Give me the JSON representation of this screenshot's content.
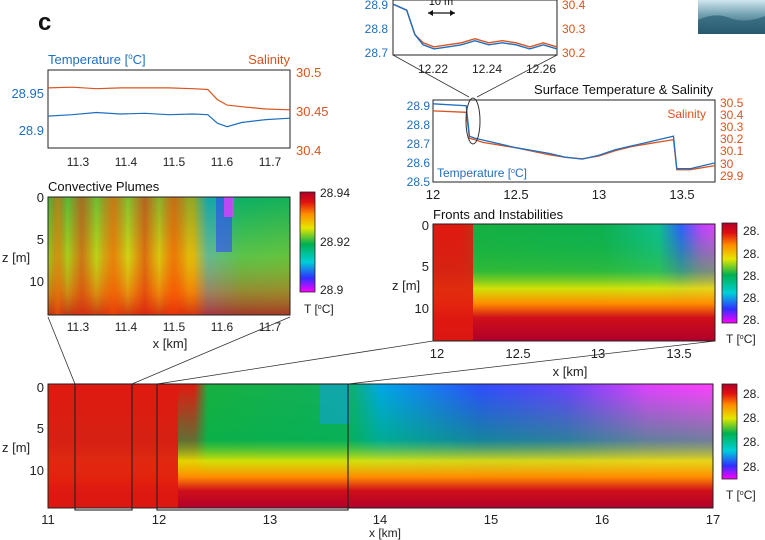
{
  "panel_letter": "c",
  "colors": {
    "temperature": "#1f6fc0",
    "salinity": "#d9541f",
    "axis": "#222222",
    "zoom_lines": "#333333"
  },
  "colormap": [
    "#ff00ff",
    "#2f30ff",
    "#00d0d8",
    "#00b050",
    "#e6e600",
    "#ff8c00",
    "#e01010",
    "#b0002a"
  ],
  "chart_data": [
    {
      "id": "zoom-surface",
      "type": "line",
      "x_ticks": [
        "12.22",
        "12.24",
        "12.26"
      ],
      "xlim": [
        12.205,
        12.265
      ],
      "y_left_ticks": [
        "28.9",
        "28.8",
        "28.7"
      ],
      "ylim_left": [
        28.68,
        28.95
      ],
      "y_right_ticks": [
        "30.4",
        "30.3",
        "30.2"
      ],
      "ylim_right": [
        30.18,
        30.45
      ],
      "scale_bar_label": "10 m",
      "series": [
        {
          "name": "Temperature",
          "x": [
            12.205,
            12.21,
            12.213,
            12.216,
            12.22,
            12.225,
            12.23,
            12.235,
            12.24,
            12.245,
            12.25,
            12.255,
            12.26,
            12.265
          ],
          "y": [
            28.93,
            28.9,
            28.78,
            28.73,
            28.71,
            28.72,
            28.73,
            28.75,
            28.73,
            28.74,
            28.73,
            28.71,
            28.73,
            28.71
          ]
        },
        {
          "name": "Salinity",
          "x": [
            12.205,
            12.21,
            12.213,
            12.216,
            12.22,
            12.225,
            12.23,
            12.235,
            12.24,
            12.245,
            12.25,
            12.255,
            12.26,
            12.265
          ],
          "y": [
            30.43,
            30.4,
            30.28,
            30.24,
            30.22,
            30.23,
            30.24,
            30.26,
            30.24,
            30.25,
            30.24,
            30.22,
            30.24,
            30.22
          ]
        }
      ]
    },
    {
      "id": "convective-surface",
      "type": "line",
      "legend_left": "Temperature [",
      "legend_left_unit": "o",
      "legend_left_end": "C]",
      "legend_right": "Salinity",
      "x_ticks": [
        "11.3",
        "11.4",
        "11.5",
        "11.6",
        "11.7"
      ],
      "xlim": [
        11.25,
        11.75
      ],
      "y_left_ticks": [
        "28.95",
        "28.9"
      ],
      "ylim_left": [
        28.87,
        28.98
      ],
      "y_right_ticks": [
        "30.5",
        "30.45",
        "30.4"
      ],
      "ylim_right": [
        30.4,
        30.5
      ],
      "series": [
        {
          "name": "Temperature",
          "x": [
            11.25,
            11.3,
            11.35,
            11.4,
            11.45,
            11.5,
            11.55,
            11.58,
            11.6,
            11.62,
            11.65,
            11.7,
            11.75
          ],
          "y": [
            28.915,
            28.917,
            28.92,
            28.918,
            28.919,
            28.917,
            28.918,
            28.917,
            28.905,
            28.9,
            28.906,
            28.91,
            28.912
          ]
        },
        {
          "name": "Salinity",
          "x": [
            11.25,
            11.3,
            11.35,
            11.4,
            11.45,
            11.5,
            11.55,
            11.58,
            11.6,
            11.62,
            11.65,
            11.7,
            11.75
          ],
          "y": [
            30.477,
            30.478,
            30.476,
            30.477,
            30.477,
            30.477,
            30.476,
            30.475,
            30.462,
            30.455,
            30.453,
            30.45,
            30.449
          ]
        }
      ]
    },
    {
      "id": "surface-ts",
      "type": "line",
      "title": "Surface Temperature & Salinity",
      "legend_left": "Temperature [",
      "legend_left_unit": "o",
      "legend_left_end": "C]",
      "legend_right": "Salinity",
      "x_ticks": [
        "12",
        "12.5",
        "13",
        "13.5"
      ],
      "xlim": [
        12,
        13.7
      ],
      "y_left_ticks": [
        "28.9",
        "28.8",
        "28.7",
        "28.6",
        "28.5"
      ],
      "ylim_left": [
        28.5,
        28.93
      ],
      "y_right_ticks": [
        "30.5",
        "30.4",
        "30.3",
        "30.2",
        "30.1",
        "30",
        "29.9"
      ],
      "ylim_right": [
        29.9,
        30.5
      ],
      "series": [
        {
          "name": "Temperature",
          "x": [
            12,
            12.2,
            12.22,
            12.25,
            12.3,
            12.5,
            12.7,
            12.8,
            12.9,
            13.0,
            13.1,
            13.2,
            13.3,
            13.4,
            13.45,
            13.47,
            13.55,
            13.6,
            13.7
          ],
          "y": [
            28.91,
            28.9,
            28.74,
            28.73,
            28.72,
            28.68,
            28.65,
            28.63,
            28.62,
            28.64,
            28.67,
            28.69,
            28.71,
            28.73,
            28.74,
            28.57,
            28.57,
            28.58,
            28.6
          ]
        },
        {
          "name": "Salinity",
          "x": [
            12,
            12.2,
            12.22,
            12.25,
            12.3,
            12.5,
            12.7,
            12.8,
            12.9,
            13.0,
            13.1,
            13.2,
            13.3,
            13.4,
            13.45,
            13.47,
            13.55,
            13.6,
            13.7
          ],
          "y": [
            30.42,
            30.41,
            30.22,
            30.21,
            30.19,
            30.15,
            30.1,
            30.08,
            30.07,
            30.09,
            30.13,
            30.16,
            30.18,
            30.2,
            30.21,
            29.99,
            29.99,
            30.0,
            30.02
          ]
        }
      ]
    },
    {
      "id": "convective-plumes",
      "type": "heatmap",
      "title": "Convective Plumes",
      "x_ticks": [
        "11.3",
        "11.4",
        "11.5",
        "11.6",
        "11.7"
      ],
      "xlim": [
        11.25,
        11.75
      ],
      "xlabel": "x [km]",
      "y_ticks": [
        "0",
        "5",
        "10"
      ],
      "ylim": [
        0,
        14
      ],
      "ylabel": "z [m]",
      "colorbar_ticks": [
        "28.94",
        "28.92",
        "28.9"
      ],
      "clim": [
        28.9,
        28.94
      ],
      "colorbar_label": "T [",
      "colorbar_label_unit": "o",
      "colorbar_label_end": "C]"
    },
    {
      "id": "fronts-instabilities",
      "type": "heatmap",
      "title": "Fronts and Instabilities",
      "x_ticks": [
        "12",
        "12.5",
        "13",
        "13.5"
      ],
      "xlim": [
        11.95,
        13.7
      ],
      "xlabel": "x [km]",
      "y_ticks": [
        "0",
        "5",
        "10"
      ],
      "ylim": [
        0,
        14
      ],
      "ylabel": "z [m]",
      "colorbar_ticks": [
        "28.",
        "28.",
        "28.",
        "28.",
        "28."
      ],
      "colorbar_label": "T [",
      "colorbar_label_unit": "o",
      "colorbar_label_end": "C]"
    },
    {
      "id": "full-section",
      "type": "heatmap",
      "x_ticks": [
        "11",
        "12",
        "13",
        "14",
        "15",
        "16",
        "17"
      ],
      "xlim": [
        11,
        17
      ],
      "xlabel": "x [km]",
      "y_ticks": [
        "0",
        "5",
        "10"
      ],
      "ylim": [
        0,
        14
      ],
      "ylabel": "z [m]",
      "colorbar_ticks": [
        "28.",
        "28.",
        "28.",
        "28."
      ],
      "colorbar_label": "T [",
      "colorbar_label_unit": "o",
      "colorbar_label_end": "C]"
    }
  ]
}
